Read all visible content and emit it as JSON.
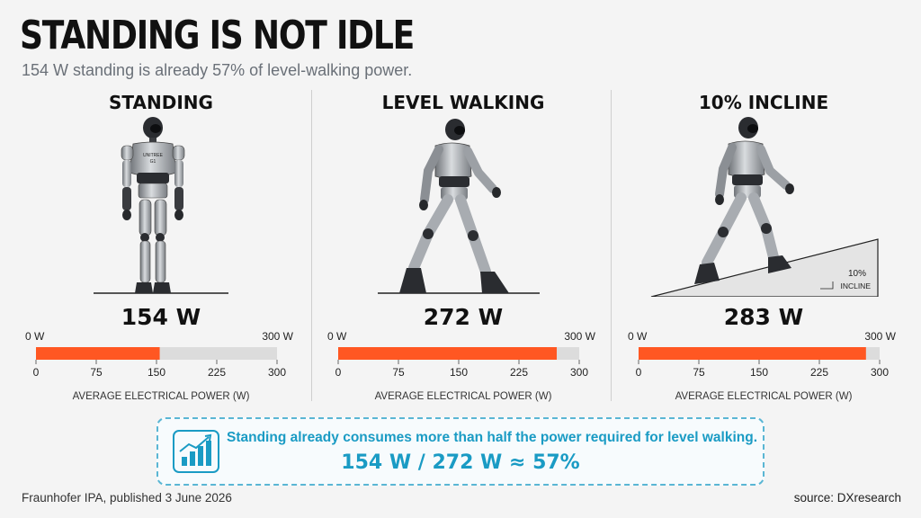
{
  "title": "STANDING IS NOT IDLE",
  "subtitle": "154 W standing is already 57% of level-walking power.",
  "panels": [
    {
      "title": "STANDING",
      "value_label": "154 W",
      "bar_min_label": "0 W",
      "bar_max_label": "300 W",
      "axis_label": "AVERAGE ELECTRICAL POWER (W)",
      "robot_chest_text": [
        "UNITREE",
        "G1"
      ]
    },
    {
      "title": "LEVEL WALKING",
      "value_label": "272 W",
      "bar_min_label": "0 W",
      "bar_max_label": "300 W",
      "axis_label": "AVERAGE ELECTRICAL POWER (W)"
    },
    {
      "title": "10% INCLINE",
      "value_label": "283 W",
      "bar_min_label": "0 W",
      "bar_max_label": "300 W",
      "axis_label": "AVERAGE ELECTRICAL POWER (W)",
      "incline_label": [
        "10%",
        "INCLINE"
      ]
    }
  ],
  "chart_data": {
    "type": "bar",
    "orientation": "horizontal",
    "categories": [
      "STANDING",
      "LEVEL WALKING",
      "10% INCLINE"
    ],
    "values": [
      154,
      272,
      283
    ],
    "unit": "W",
    "xlabel": "AVERAGE ELECTRICAL POWER (W)",
    "xlim": [
      0,
      300
    ],
    "ticks": [
      0,
      75,
      150,
      225,
      300
    ],
    "bar_color": "#ff5722",
    "track_color": "#dcdcdc"
  },
  "callout": {
    "text": "Standing already consumes more than half the power required for level walking.",
    "formula": "154 W / 272 W ≈ 57%",
    "icon": "growth-chart-icon",
    "color": "#1a9bc4"
  },
  "footer": {
    "left": "Fraunhofer IPA, published 3 June 2026",
    "right": "source: DXresearch"
  }
}
